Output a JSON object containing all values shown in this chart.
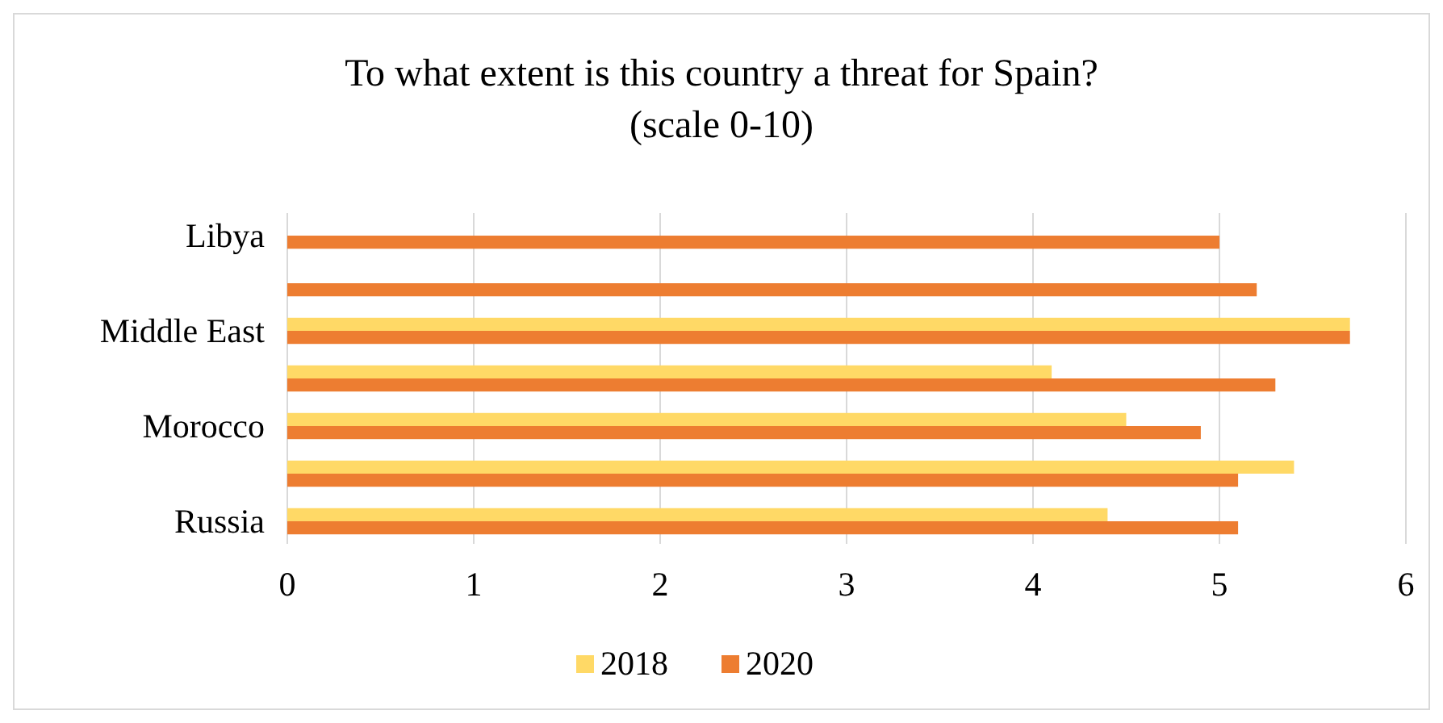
{
  "chart_data": {
    "type": "bar",
    "orientation": "horizontal",
    "title": "To what extent is this country a threat for Spain? (scale 0-10)",
    "categories": [
      "Libya",
      null,
      "Middle East",
      null,
      "Morocco",
      null,
      "Russia"
    ],
    "series": [
      {
        "name": "2018",
        "color": "#ffd966",
        "values": [
          null,
          null,
          5.7,
          4.1,
          4.5,
          5.4,
          4.4
        ]
      },
      {
        "name": "2020",
        "color": "#ed7d31",
        "values": [
          5.0,
          5.2,
          5.7,
          5.3,
          4.9,
          5.1,
          5.1
        ]
      }
    ],
    "xlim": [
      0,
      6
    ],
    "xticks": [
      0,
      1,
      2,
      3,
      4,
      5,
      6
    ],
    "grid": "x",
    "legend": "bottom"
  }
}
